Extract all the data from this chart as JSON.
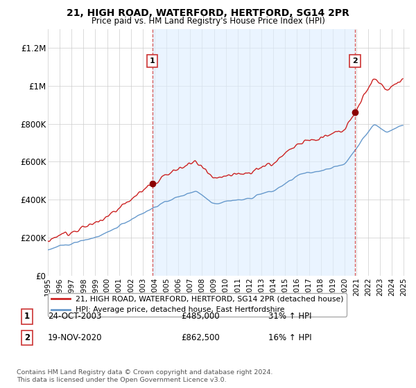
{
  "title": "21, HIGH ROAD, WATERFORD, HERTFORD, SG14 2PR",
  "subtitle": "Price paid vs. HM Land Registry's House Price Index (HPI)",
  "hpi_label": "HPI: Average price, detached house, East Hertfordshire",
  "property_label": "21, HIGH ROAD, WATERFORD, HERTFORD, SG14 2PR (detached house)",
  "footnote": "Contains HM Land Registry data © Crown copyright and database right 2024.\nThis data is licensed under the Open Government Licence v3.0.",
  "sale1_date": "24-OCT-2003",
  "sale1_price": 485000,
  "sale1_pct": "31% ↑ HPI",
  "sale2_date": "19-NOV-2020",
  "sale2_price": 862500,
  "sale2_pct": "16% ↑ HPI",
  "hpi_color": "#6699cc",
  "property_color": "#cc2222",
  "sale_marker_color": "#8b0000",
  "dashed_vline_color": "#cc3333",
  "bg_fill_color": "#ddeeff",
  "ylim": [
    0,
    1300000
  ],
  "yticks": [
    0,
    200000,
    400000,
    600000,
    800000,
    1000000,
    1200000
  ],
  "ytick_labels": [
    "£0",
    "£200K",
    "£400K",
    "£600K",
    "£800K",
    "£1M",
    "£1.2M"
  ],
  "sale1_x": 2003.8,
  "sale1_y": 485000,
  "sale2_x": 2020.88,
  "sale2_y": 862500,
  "xlim_start": 1995.0,
  "xlim_end": 2025.5
}
